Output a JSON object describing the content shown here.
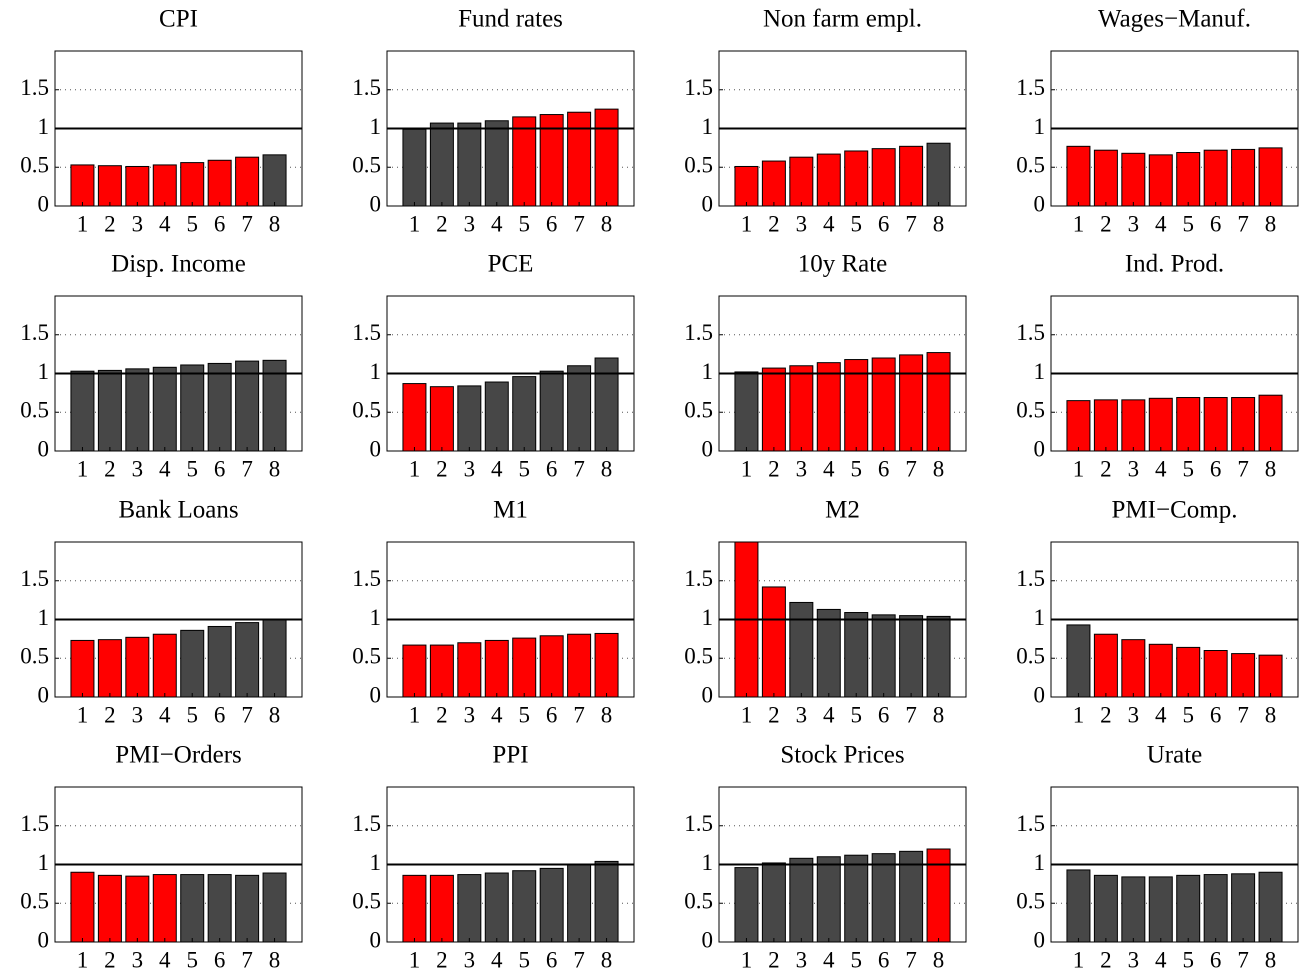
{
  "chart_data": [
    {
      "type": "bar",
      "title": "CPI",
      "categories": [
        "1",
        "2",
        "3",
        "4",
        "5",
        "6",
        "7",
        "8"
      ],
      "values": [
        0.53,
        0.52,
        0.51,
        0.53,
        0.56,
        0.59,
        0.63,
        0.66
      ],
      "colors": [
        "#ff0000",
        "#ff0000",
        "#ff0000",
        "#ff0000",
        "#ff0000",
        "#ff0000",
        "#ff0000",
        "#474747"
      ],
      "ylim": [
        0,
        2
      ],
      "yticks": [
        0,
        0.5,
        1,
        1.5
      ],
      "grid": true,
      "refline": 1
    },
    {
      "type": "bar",
      "title": "Fund rates",
      "categories": [
        "1",
        "2",
        "3",
        "4",
        "5",
        "6",
        "7",
        "8"
      ],
      "values": [
        0.99,
        1.07,
        1.07,
        1.1,
        1.15,
        1.18,
        1.21,
        1.25
      ],
      "colors": [
        "#474747",
        "#474747",
        "#474747",
        "#474747",
        "#ff0000",
        "#ff0000",
        "#ff0000",
        "#ff0000"
      ],
      "ylim": [
        0,
        2
      ],
      "yticks": [
        0,
        0.5,
        1,
        1.5
      ],
      "grid": true,
      "refline": 1
    },
    {
      "type": "bar",
      "title": "Non farm empl.",
      "categories": [
        "1",
        "2",
        "3",
        "4",
        "5",
        "6",
        "7",
        "8"
      ],
      "values": [
        0.51,
        0.58,
        0.63,
        0.67,
        0.71,
        0.74,
        0.77,
        0.81
      ],
      "colors": [
        "#ff0000",
        "#ff0000",
        "#ff0000",
        "#ff0000",
        "#ff0000",
        "#ff0000",
        "#ff0000",
        "#474747"
      ],
      "ylim": [
        0,
        2
      ],
      "yticks": [
        0,
        0.5,
        1,
        1.5
      ],
      "grid": true,
      "refline": 1
    },
    {
      "type": "bar",
      "title": "Wages−Manuf.",
      "categories": [
        "1",
        "2",
        "3",
        "4",
        "5",
        "6",
        "7",
        "8"
      ],
      "values": [
        0.77,
        0.72,
        0.68,
        0.66,
        0.69,
        0.72,
        0.73,
        0.75
      ],
      "colors": [
        "#ff0000",
        "#ff0000",
        "#ff0000",
        "#ff0000",
        "#ff0000",
        "#ff0000",
        "#ff0000",
        "#ff0000"
      ],
      "ylim": [
        0,
        2
      ],
      "yticks": [
        0,
        0.5,
        1,
        1.5
      ],
      "grid": true,
      "refline": 1
    },
    {
      "type": "bar",
      "title": "Disp. Income",
      "categories": [
        "1",
        "2",
        "3",
        "4",
        "5",
        "6",
        "7",
        "8"
      ],
      "values": [
        1.03,
        1.04,
        1.06,
        1.08,
        1.11,
        1.13,
        1.16,
        1.17
      ],
      "colors": [
        "#474747",
        "#474747",
        "#474747",
        "#474747",
        "#474747",
        "#474747",
        "#474747",
        "#474747"
      ],
      "ylim": [
        0,
        2
      ],
      "yticks": [
        0,
        0.5,
        1,
        1.5
      ],
      "grid": true,
      "refline": 1
    },
    {
      "type": "bar",
      "title": "PCE",
      "categories": [
        "1",
        "2",
        "3",
        "4",
        "5",
        "6",
        "7",
        "8"
      ],
      "values": [
        0.87,
        0.83,
        0.84,
        0.89,
        0.96,
        1.03,
        1.1,
        1.2
      ],
      "colors": [
        "#ff0000",
        "#ff0000",
        "#474747",
        "#474747",
        "#474747",
        "#474747",
        "#474747",
        "#474747"
      ],
      "ylim": [
        0,
        2
      ],
      "yticks": [
        0,
        0.5,
        1,
        1.5
      ],
      "grid": true,
      "refline": 1
    },
    {
      "type": "bar",
      "title": "10y Rate",
      "categories": [
        "1",
        "2",
        "3",
        "4",
        "5",
        "6",
        "7",
        "8"
      ],
      "values": [
        1.02,
        1.07,
        1.1,
        1.14,
        1.18,
        1.2,
        1.24,
        1.27
      ],
      "colors": [
        "#474747",
        "#ff0000",
        "#ff0000",
        "#ff0000",
        "#ff0000",
        "#ff0000",
        "#ff0000",
        "#ff0000"
      ],
      "ylim": [
        0,
        2
      ],
      "yticks": [
        0,
        0.5,
        1,
        1.5
      ],
      "grid": true,
      "refline": 1
    },
    {
      "type": "bar",
      "title": "Ind. Prod.",
      "categories": [
        "1",
        "2",
        "3",
        "4",
        "5",
        "6",
        "7",
        "8"
      ],
      "values": [
        0.65,
        0.66,
        0.66,
        0.68,
        0.69,
        0.69,
        0.69,
        0.72
      ],
      "colors": [
        "#ff0000",
        "#ff0000",
        "#ff0000",
        "#ff0000",
        "#ff0000",
        "#ff0000",
        "#ff0000",
        "#ff0000"
      ],
      "ylim": [
        0,
        2
      ],
      "yticks": [
        0,
        0.5,
        1,
        1.5
      ],
      "grid": true,
      "refline": 1
    },
    {
      "type": "bar",
      "title": "Bank Loans",
      "categories": [
        "1",
        "2",
        "3",
        "4",
        "5",
        "6",
        "7",
        "8"
      ],
      "values": [
        0.73,
        0.74,
        0.77,
        0.81,
        0.86,
        0.91,
        0.96,
        1.0
      ],
      "colors": [
        "#ff0000",
        "#ff0000",
        "#ff0000",
        "#ff0000",
        "#474747",
        "#474747",
        "#474747",
        "#474747"
      ],
      "ylim": [
        0,
        2
      ],
      "yticks": [
        0,
        0.5,
        1,
        1.5
      ],
      "grid": true,
      "refline": 1
    },
    {
      "type": "bar",
      "title": "M1",
      "categories": [
        "1",
        "2",
        "3",
        "4",
        "5",
        "6",
        "7",
        "8"
      ],
      "values": [
        0.67,
        0.67,
        0.7,
        0.73,
        0.76,
        0.79,
        0.81,
        0.82
      ],
      "colors": [
        "#ff0000",
        "#ff0000",
        "#ff0000",
        "#ff0000",
        "#ff0000",
        "#ff0000",
        "#ff0000",
        "#ff0000"
      ],
      "ylim": [
        0,
        2
      ],
      "yticks": [
        0,
        0.5,
        1,
        1.5
      ],
      "grid": true,
      "refline": 1
    },
    {
      "type": "bar",
      "title": "M2",
      "categories": [
        "1",
        "2",
        "3",
        "4",
        "5",
        "6",
        "7",
        "8"
      ],
      "values": [
        2.0,
        1.42,
        1.22,
        1.13,
        1.09,
        1.06,
        1.05,
        1.04
      ],
      "colors": [
        "#ff0000",
        "#ff0000",
        "#474747",
        "#474747",
        "#474747",
        "#474747",
        "#474747",
        "#474747"
      ],
      "ylim": [
        0,
        2
      ],
      "yticks": [
        0,
        0.5,
        1,
        1.5
      ],
      "grid": true,
      "refline": 1
    },
    {
      "type": "bar",
      "title": "PMI−Comp.",
      "categories": [
        "1",
        "2",
        "3",
        "4",
        "5",
        "6",
        "7",
        "8"
      ],
      "values": [
        0.93,
        0.81,
        0.74,
        0.68,
        0.64,
        0.6,
        0.56,
        0.54
      ],
      "colors": [
        "#474747",
        "#ff0000",
        "#ff0000",
        "#ff0000",
        "#ff0000",
        "#ff0000",
        "#ff0000",
        "#ff0000"
      ],
      "ylim": [
        0,
        2
      ],
      "yticks": [
        0,
        0.5,
        1,
        1.5
      ],
      "grid": true,
      "refline": 1
    },
    {
      "type": "bar",
      "title": "PMI−Orders",
      "categories": [
        "1",
        "2",
        "3",
        "4",
        "5",
        "6",
        "7",
        "8"
      ],
      "values": [
        0.9,
        0.86,
        0.85,
        0.87,
        0.87,
        0.87,
        0.86,
        0.89
      ],
      "colors": [
        "#ff0000",
        "#ff0000",
        "#ff0000",
        "#ff0000",
        "#474747",
        "#474747",
        "#474747",
        "#474747"
      ],
      "ylim": [
        0,
        2
      ],
      "yticks": [
        0,
        0.5,
        1,
        1.5
      ],
      "grid": true,
      "refline": 1
    },
    {
      "type": "bar",
      "title": "PPI",
      "categories": [
        "1",
        "2",
        "3",
        "4",
        "5",
        "6",
        "7",
        "8"
      ],
      "values": [
        0.86,
        0.86,
        0.87,
        0.89,
        0.92,
        0.95,
        1.0,
        1.04
      ],
      "colors": [
        "#ff0000",
        "#ff0000",
        "#474747",
        "#474747",
        "#474747",
        "#474747",
        "#474747",
        "#474747"
      ],
      "ylim": [
        0,
        2
      ],
      "yticks": [
        0,
        0.5,
        1,
        1.5
      ],
      "grid": true,
      "refline": 1
    },
    {
      "type": "bar",
      "title": "Stock Prices",
      "categories": [
        "1",
        "2",
        "3",
        "4",
        "5",
        "6",
        "7",
        "8"
      ],
      "values": [
        0.96,
        1.02,
        1.08,
        1.1,
        1.12,
        1.14,
        1.17,
        1.2
      ],
      "colors": [
        "#474747",
        "#474747",
        "#474747",
        "#474747",
        "#474747",
        "#474747",
        "#474747",
        "#ff0000"
      ],
      "ylim": [
        0,
        2
      ],
      "yticks": [
        0,
        0.5,
        1,
        1.5
      ],
      "grid": true,
      "refline": 1
    },
    {
      "type": "bar",
      "title": "Urate",
      "categories": [
        "1",
        "2",
        "3",
        "4",
        "5",
        "6",
        "7",
        "8"
      ],
      "values": [
        0.93,
        0.86,
        0.84,
        0.84,
        0.86,
        0.87,
        0.88,
        0.9
      ],
      "colors": [
        "#474747",
        "#474747",
        "#474747",
        "#474747",
        "#474747",
        "#474747",
        "#474747",
        "#474747"
      ],
      "ylim": [
        0,
        2
      ],
      "yticks": [
        0,
        0.5,
        1,
        1.5
      ],
      "grid": true,
      "refline": 1
    }
  ]
}
